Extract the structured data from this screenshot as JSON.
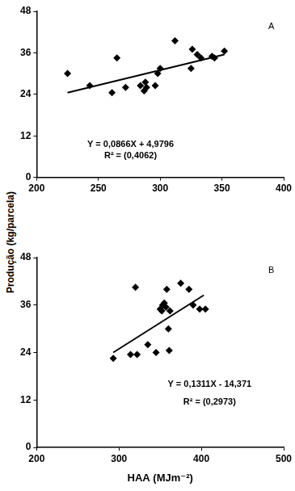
{
  "ylabel": "Produção (kg/parcela)",
  "chart_data": [
    {
      "type": "scatter",
      "title": "A",
      "annotations": [
        "Y = 0,0866X + 4,9796",
        "R² = (0,4062)"
      ],
      "xlim": [
        200,
        400
      ],
      "xticks": [
        200,
        250,
        300,
        350,
        400
      ],
      "ylim": [
        0,
        48
      ],
      "yticks": [
        0,
        12,
        24,
        36,
        48
      ],
      "grid": false,
      "series": [
        {
          "type": "scatter",
          "marker": "diamond",
          "color": "#000000",
          "x": [
            225,
            243,
            261,
            265,
            272,
            284,
            287,
            288,
            289,
            296,
            298,
            300,
            312,
            325,
            326,
            330,
            333,
            342,
            344,
            352
          ],
          "values": [
            30,
            26.5,
            24.5,
            34.5,
            26,
            26.5,
            25,
            27.5,
            26,
            26.5,
            30,
            31.5,
            39.5,
            31.5,
            37,
            35.5,
            34.5,
            35,
            34.5,
            36.5
          ]
        },
        {
          "type": "line",
          "line_style": "solid",
          "color": "#000000",
          "x": [
            225,
            352
          ],
          "values": [
            24.5,
            35.5
          ]
        }
      ]
    },
    {
      "type": "scatter",
      "title": "B",
      "xlabel": "HAA (MJm⁻²)",
      "annotations": [
        "Y = 0,1311X - 14,371",
        "R² = (0,2973)"
      ],
      "xlim": [
        200,
        500
      ],
      "xticks": [
        200,
        300,
        400,
        500
      ],
      "ylim": [
        0,
        48
      ],
      "yticks": [
        0,
        12,
        24,
        36,
        48
      ],
      "grid": false,
      "series": [
        {
          "type": "scatter",
          "marker": "diamond",
          "color": "#000000",
          "x": [
            293,
            314,
            320,
            322,
            335,
            345,
            350,
            352,
            353,
            355,
            357,
            358,
            360,
            361,
            362,
            375,
            385,
            390,
            398,
            405
          ],
          "values": [
            22.5,
            23.5,
            40.5,
            23.5,
            26,
            24,
            35,
            34.5,
            36,
            36.5,
            35.5,
            40,
            30,
            24.5,
            34.5,
            41.5,
            40,
            36,
            35,
            35
          ]
        },
        {
          "type": "line",
          "line_style": "solid",
          "color": "#000000",
          "x": [
            293,
            403
          ],
          "values": [
            24,
            38.5
          ]
        }
      ]
    }
  ]
}
